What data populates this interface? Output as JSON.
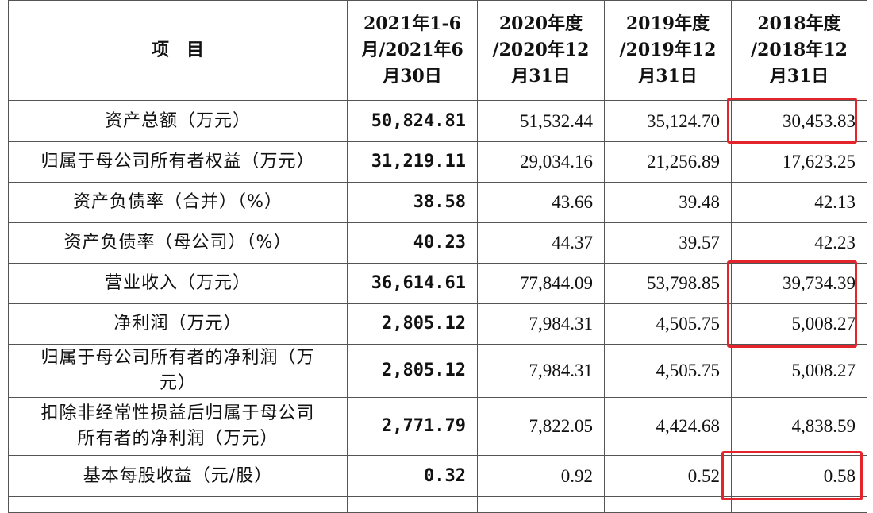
{
  "header": {
    "item": "项　目",
    "col1": [
      "2021年1-6",
      "月/2021年6",
      "月30日"
    ],
    "col2": [
      "2020年度",
      "/2020年12",
      "月31日"
    ],
    "col3": [
      "2019年度",
      "/2019年12",
      "月31日"
    ],
    "col4": [
      "2018年度",
      "/2018年12",
      "月31日"
    ]
  },
  "rows": [
    {
      "label": "资产总额（万元）",
      "v1": "50,824.81",
      "v2": "51,532.44",
      "v3": "35,124.70",
      "v4": "30,453.83"
    },
    {
      "label": "归属于母公司所有者权益（万元）",
      "v1": "31,219.11",
      "v2": "29,034.16",
      "v3": "21,256.89",
      "v4": "17,623.25"
    },
    {
      "label": "资产负债率（合并）（%）",
      "v1": "38.58",
      "v2": "43.66",
      "v3": "39.48",
      "v4": "42.13"
    },
    {
      "label": "资产负债率（母公司）（%）",
      "v1": "40.23",
      "v2": "44.37",
      "v3": "39.57",
      "v4": "42.23"
    },
    {
      "label": "营业收入（万元）",
      "v1": "36,614.61",
      "v2": "77,844.09",
      "v3": "53,798.85",
      "v4": "39,734.39"
    },
    {
      "label": "净利润（万元）",
      "v1": "2,805.12",
      "v2": "7,984.31",
      "v3": "4,505.75",
      "v4": "5,008.27"
    },
    {
      "label": [
        "归属于母公司所有者的净利润（万",
        "元）"
      ],
      "v1": "2,805.12",
      "v2": "7,984.31",
      "v3": "4,505.75",
      "v4": "5,008.27"
    },
    {
      "label": [
        "扣除非经常性损益后归属于母公司",
        "所有者的净利润（万元）"
      ],
      "v1": "2,771.79",
      "v2": "7,822.05",
      "v3": "4,424.68",
      "v4": "4,838.59"
    },
    {
      "label": "基本每股收益（元/股）",
      "v1": "0.32",
      "v2": "0.92",
      "v3": "0.52",
      "v4": "0.58"
    }
  ],
  "highlight_color": "#e3242b"
}
